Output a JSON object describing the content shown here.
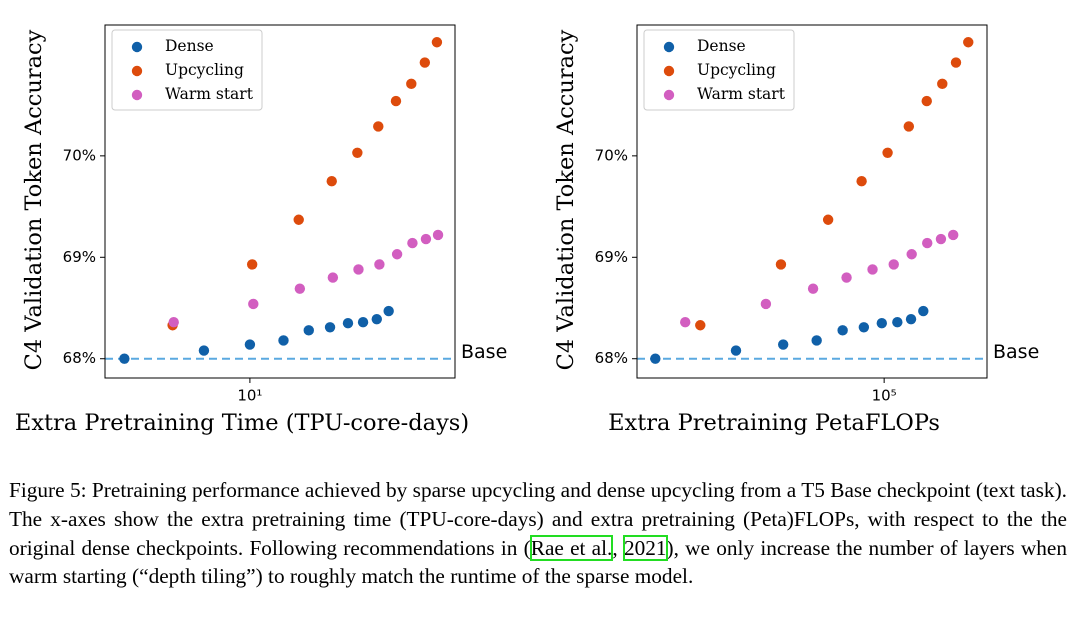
{
  "chart_data": [
    {
      "type": "scatter",
      "x_label": "Extra Pretraining Time (TPU-core-days)",
      "y_label": "C4 Validation Token Accuracy",
      "x_scale": "log",
      "xlim": [
        2.83,
        59.7
      ],
      "xticks": [
        {
          "value": 10,
          "label": "10¹"
        }
      ],
      "ylim": [
        67.81,
        71.29
      ],
      "yticks": [
        {
          "value": 68,
          "label": "68%"
        },
        {
          "value": 69,
          "label": "69%"
        },
        {
          "value": 70,
          "label": "70%"
        }
      ],
      "legend": "upper left",
      "baseline": 68,
      "baseline_label": "Base",
      "series": [
        {
          "name": "Dense",
          "color": "#1060a8",
          "x": [
            3.35,
            6.7,
            10.0,
            13.4,
            16.7,
            20.1,
            23.5,
            26.8,
            30.2,
            33.5
          ],
          "values": [
            68.0,
            68.08,
            68.14,
            68.18,
            68.28,
            68.31,
            68.35,
            68.36,
            68.39,
            68.47
          ]
        },
        {
          "name": "Upcycling",
          "color": "#dd4b0c",
          "x": [
            5.1,
            10.2,
            15.3,
            20.4,
            25.5,
            30.6,
            35.7,
            40.8,
            45.9,
            51.0
          ],
          "values": [
            68.33,
            68.93,
            69.37,
            69.75,
            70.03,
            70.29,
            70.54,
            70.71,
            70.92,
            71.12
          ]
        },
        {
          "name": "Warm start",
          "color": "#d25ec0",
          "x": [
            5.15,
            10.3,
            15.45,
            20.6,
            25.75,
            30.9,
            36.05,
            41.2,
            46.35,
            51.5
          ],
          "values": [
            68.36,
            68.54,
            68.69,
            68.8,
            68.88,
            68.93,
            69.03,
            69.14,
            69.18,
            69.22
          ]
        }
      ]
    },
    {
      "type": "scatter",
      "x_label": "Extra Pretraining PetaFLOPs",
      "y_label": "C4 Validation Token Accuracy",
      "x_scale": "log",
      "xlim": [
        11960,
        242000
      ],
      "xticks": [
        {
          "value": 100000,
          "label": "10⁵"
        }
      ],
      "ylim": [
        67.81,
        71.29
      ],
      "yticks": [
        {
          "value": 68,
          "label": "68%"
        },
        {
          "value": 69,
          "label": "69%"
        },
        {
          "value": 70,
          "label": "70%"
        }
      ],
      "legend": "upper left",
      "baseline": 68,
      "baseline_label": "Base",
      "series": [
        {
          "name": "Dense",
          "color": "#1060a8",
          "x": [
            14000,
            28000,
            42000,
            56000,
            70000,
            84000,
            98000,
            112000,
            126000,
            140000
          ],
          "values": [
            68.0,
            68.08,
            68.14,
            68.18,
            68.28,
            68.31,
            68.35,
            68.36,
            68.39,
            68.47
          ]
        },
        {
          "name": "Upcycling",
          "color": "#dd4b0c",
          "x": [
            20600,
            41200,
            61800,
            82400,
            103000,
            123600,
            144200,
            164800,
            185400,
            206000
          ],
          "values": [
            68.33,
            68.93,
            69.37,
            69.75,
            70.03,
            70.29,
            70.54,
            70.71,
            70.92,
            71.12
          ]
        },
        {
          "name": "Warm start",
          "color": "#d25ec0",
          "x": [
            18100,
            36200,
            54300,
            72400,
            90500,
            108600,
            126700,
            144800,
            162900,
            181000
          ],
          "values": [
            68.36,
            68.54,
            68.69,
            68.8,
            68.88,
            68.93,
            69.03,
            69.14,
            69.18,
            69.22
          ]
        }
      ]
    }
  ],
  "caption": {
    "text": "Figure 5: Pretraining performance achieved by sparse upcycling and dense upcycling from a T5 Base checkpoint (text task). The x-axes show the extra pretraining time (TPU-core-days) and extra pretraining (Peta)FLOPs, with respect to the the original dense checkpoints. Following recommendations in (",
    "cite_author": "Rae et al.",
    "cite_sep": ", ",
    "cite_year": "2021",
    "text_after": "), we only increase the number of layers when warm starting (“depth tiling”) to roughly match the runtime of the sparse model."
  }
}
